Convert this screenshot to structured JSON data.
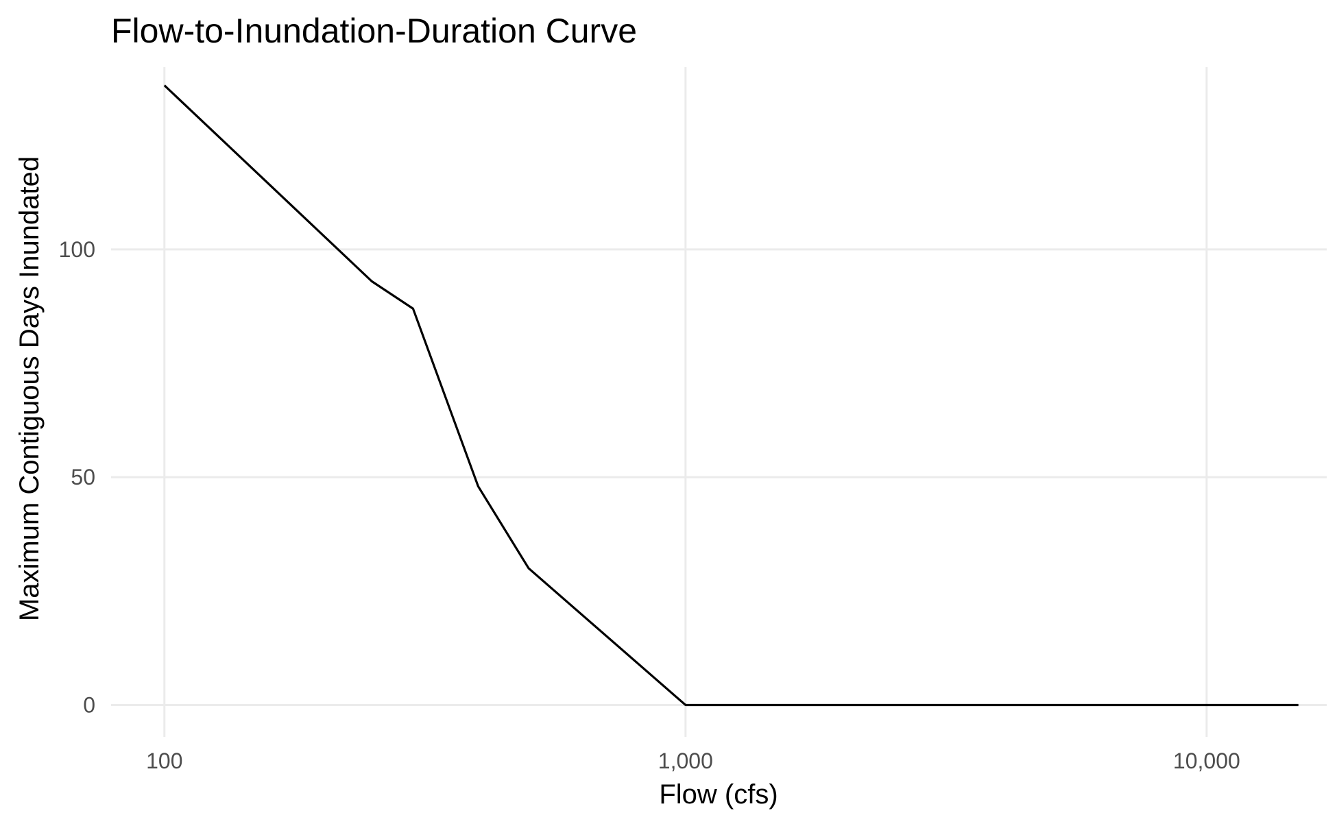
{
  "chart_data": {
    "type": "line",
    "title": "Flow-to-Inundation-Duration Curve",
    "xlabel": "Flow (cfs)",
    "ylabel": "Maximum Contiguous Days Inundated",
    "x_scale": "log10",
    "xlim": [
      79,
      17000
    ],
    "ylim": [
      -7,
      140
    ],
    "x_ticks": [
      {
        "value": 100,
        "label": "100"
      },
      {
        "value": 1000,
        "label": "1,000"
      },
      {
        "value": 10000,
        "label": "10,000"
      }
    ],
    "y_ticks": [
      {
        "value": 0,
        "label": "0"
      },
      {
        "value": 50,
        "label": "50"
      },
      {
        "value": 100,
        "label": "100"
      }
    ],
    "grid": true,
    "legend": "none",
    "series": [
      {
        "color": "#000000",
        "x": [
          100,
          250,
          300,
          400,
          500,
          1000,
          15000
        ],
        "y": [
          136,
          93,
          87,
          48,
          30,
          0,
          0
        ]
      }
    ]
  }
}
